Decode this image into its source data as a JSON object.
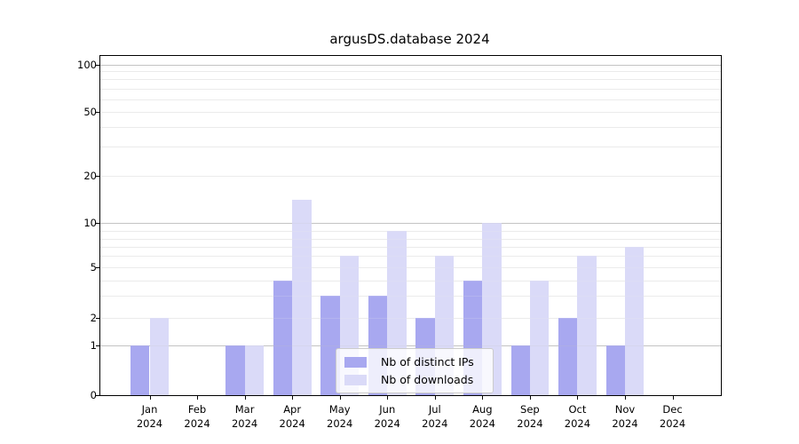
{
  "title": "argusDS.database 2024",
  "chart_data": {
    "type": "bar",
    "title": "argusDS.database 2024",
    "categories": [
      "Jan",
      "Feb",
      "Mar",
      "Apr",
      "May",
      "Jun",
      "Jul",
      "Aug",
      "Sep",
      "Oct",
      "Nov",
      "Dec"
    ],
    "category_year": "2024",
    "series": [
      {
        "name": "Nb of distinct IPs",
        "color": "#a8a8f0",
        "values": [
          1,
          0,
          1,
          4,
          3,
          3,
          2,
          4,
          1,
          2,
          1,
          0
        ]
      },
      {
        "name": "Nb of downloads",
        "color": "#dadaf8",
        "values": [
          2,
          0,
          1,
          14,
          6,
          9,
          6,
          10,
          4,
          6,
          7,
          0
        ]
      }
    ],
    "xlabel": "",
    "ylabel": "",
    "yscale": "symlog",
    "yticks_major": [
      0,
      1,
      2,
      5,
      10,
      20,
      50,
      100
    ],
    "yticks_minor": [
      3,
      4,
      6,
      7,
      8,
      9,
      30,
      40,
      60,
      70,
      80,
      90
    ],
    "ylim": [
      0,
      140
    ],
    "grid": true,
    "legend_position": "lower center"
  },
  "colors": {
    "grid_major": "#c4c4c4",
    "grid_minor": "#ebebeb",
    "axis": "#000000",
    "background": "#ffffff"
  }
}
